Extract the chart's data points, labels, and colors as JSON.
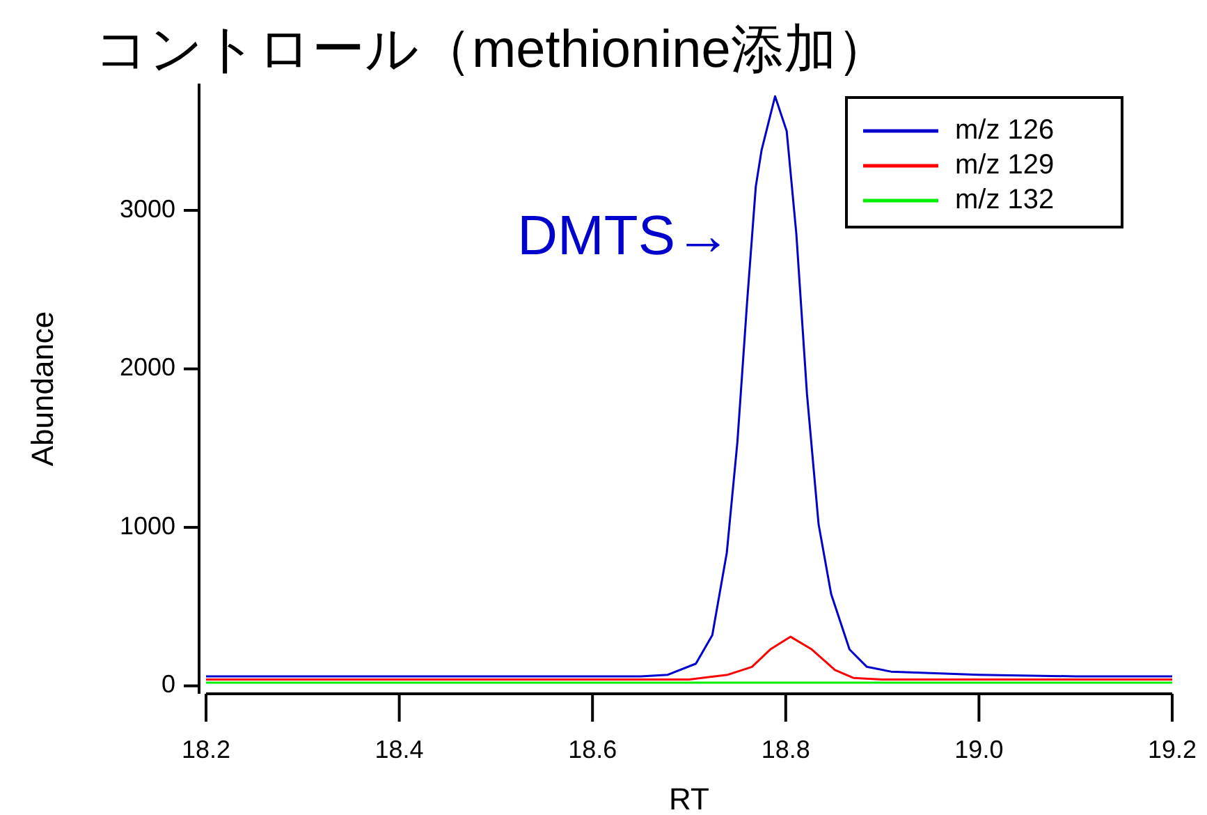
{
  "chart_data": {
    "type": "line",
    "title": "コントロール（methionine添加）",
    "xlabel": "RT",
    "ylabel": "Abundance",
    "xlim": [
      18.2,
      19.2
    ],
    "xticks": [
      {
        "value": 18.2,
        "label": "18.2"
      },
      {
        "value": 18.4,
        "label": "18.4"
      },
      {
        "value": 18.6,
        "label": "18.6"
      },
      {
        "value": 18.8,
        "label": "18.8"
      },
      {
        "value": 19.0,
        "label": "19.0"
      },
      {
        "value": 19.2,
        "label": "19.2"
      }
    ],
    "ylim": [
      -50,
      3800
    ],
    "yticks": [
      0,
      1000,
      2000,
      3000
    ],
    "grid": false,
    "legend": "top right",
    "marker": "none",
    "line_style": "solid",
    "annotations": [
      "DMTS→"
    ],
    "series": [
      {
        "name": "m/z 126",
        "color": "#0000cc",
        "x": [
          18.2,
          18.3,
          18.4,
          18.5,
          18.6,
          18.65,
          18.678,
          18.707,
          18.724,
          18.739,
          18.75,
          18.76,
          18.769,
          18.775,
          18.789,
          18.801,
          18.811,
          18.822,
          18.834,
          18.847,
          18.866,
          18.884,
          18.909,
          19.0,
          19.1,
          19.2
        ],
        "values": [
          60,
          60,
          60,
          60,
          60,
          60,
          70,
          140,
          320,
          840,
          1540,
          2420,
          3150,
          3380,
          3720,
          3500,
          2850,
          1840,
          1020,
          580,
          230,
          120,
          90,
          70,
          60,
          60
        ]
      },
      {
        "name": "m/z 129",
        "color": "#ff0000",
        "x": [
          18.2,
          18.4,
          18.6,
          18.7,
          18.74,
          18.765,
          18.784,
          18.805,
          18.827,
          18.851,
          18.87,
          18.9,
          19.0,
          19.2
        ],
        "values": [
          40,
          40,
          40,
          40,
          70,
          120,
          230,
          310,
          230,
          100,
          50,
          40,
          40,
          40
        ]
      },
      {
        "name": "m/z 132",
        "color": "#00ee00",
        "x": [
          18.2,
          18.4,
          18.6,
          18.8,
          19.0,
          19.2
        ],
        "values": [
          20,
          20,
          20,
          20,
          20,
          20
        ]
      }
    ]
  }
}
